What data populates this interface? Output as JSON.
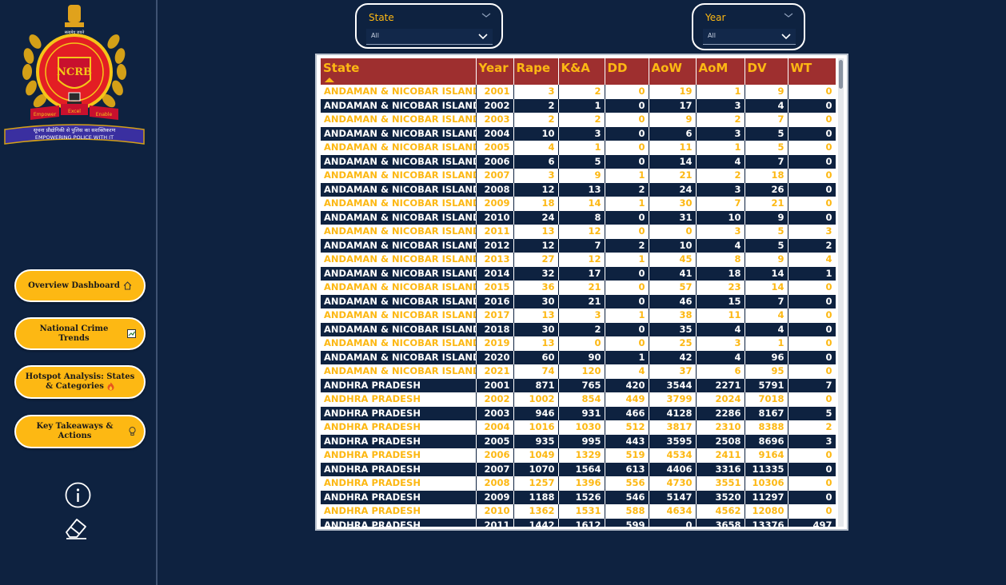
{
  "sidebar": {
    "logo": {
      "top_text": "सत्यमेव जयते",
      "seal_text": "NCRB",
      "motto_left": "Empower",
      "motto_mid": "Excel",
      "motto_right": "Enable",
      "ribbon_hindi": "सूचना प्रौद्योगिकी से पुलिस का सशक्तिकरण",
      "ribbon_english": "EMPOWERING POLICE WITH IT"
    },
    "nav": [
      {
        "label": "Overview Dashboard",
        "icon": "home-icon"
      },
      {
        "label": "National Crime Trends",
        "icon": "chart-icon"
      },
      {
        "label": "Hotspot Analysis: States & Categories",
        "icon": "fire-icon"
      },
      {
        "label": "Key Takeaways & Actions",
        "icon": "lightbulb-icon"
      }
    ],
    "info_icon": "info-icon",
    "eraser_icon": "eraser-icon"
  },
  "filters": {
    "state": {
      "label": "State",
      "value": "All"
    },
    "year": {
      "label": "Year",
      "value": "All"
    }
  },
  "colors": {
    "background": "#0e2240",
    "accent": "#fdb813",
    "header": "#9e2f2f",
    "white": "#ffffff"
  },
  "table": {
    "columns": [
      "State",
      "Year",
      "Rape",
      "K&A",
      "DD",
      "AoW",
      "AoM",
      "DV",
      "WT"
    ],
    "rows": [
      [
        "ANDAMAN & NICOBAR ISLANDS",
        "2001",
        "3",
        "2",
        "0",
        "19",
        "1",
        "9",
        "0"
      ],
      [
        "ANDAMAN & NICOBAR ISLANDS",
        "2002",
        "2",
        "1",
        "0",
        "17",
        "3",
        "4",
        "0"
      ],
      [
        "ANDAMAN & NICOBAR ISLANDS",
        "2003",
        "2",
        "2",
        "0",
        "9",
        "2",
        "7",
        "0"
      ],
      [
        "ANDAMAN & NICOBAR ISLANDS",
        "2004",
        "10",
        "3",
        "0",
        "6",
        "3",
        "5",
        "0"
      ],
      [
        "ANDAMAN & NICOBAR ISLANDS",
        "2005",
        "4",
        "1",
        "0",
        "11",
        "1",
        "5",
        "0"
      ],
      [
        "ANDAMAN & NICOBAR ISLANDS",
        "2006",
        "6",
        "5",
        "0",
        "14",
        "4",
        "7",
        "0"
      ],
      [
        "ANDAMAN & NICOBAR ISLANDS",
        "2007",
        "3",
        "9",
        "1",
        "21",
        "2",
        "18",
        "0"
      ],
      [
        "ANDAMAN & NICOBAR ISLANDS",
        "2008",
        "12",
        "13",
        "2",
        "24",
        "3",
        "26",
        "0"
      ],
      [
        "ANDAMAN & NICOBAR ISLANDS",
        "2009",
        "18",
        "14",
        "1",
        "30",
        "7",
        "21",
        "0"
      ],
      [
        "ANDAMAN & NICOBAR ISLANDS",
        "2010",
        "24",
        "8",
        "0",
        "31",
        "10",
        "9",
        "0"
      ],
      [
        "ANDAMAN & NICOBAR ISLANDS",
        "2011",
        "13",
        "12",
        "0",
        "0",
        "3",
        "5",
        "3"
      ],
      [
        "ANDAMAN & NICOBAR ISLANDS",
        "2012",
        "12",
        "7",
        "2",
        "10",
        "4",
        "5",
        "2"
      ],
      [
        "ANDAMAN & NICOBAR ISLANDS",
        "2013",
        "27",
        "12",
        "1",
        "45",
        "8",
        "9",
        "4"
      ],
      [
        "ANDAMAN & NICOBAR ISLANDS",
        "2014",
        "32",
        "17",
        "0",
        "41",
        "18",
        "14",
        "1"
      ],
      [
        "ANDAMAN & NICOBAR ISLANDS",
        "2015",
        "36",
        "21",
        "0",
        "57",
        "23",
        "14",
        "0"
      ],
      [
        "ANDAMAN & NICOBAR ISLANDS",
        "2016",
        "30",
        "21",
        "0",
        "46",
        "15",
        "7",
        "0"
      ],
      [
        "ANDAMAN & NICOBAR ISLANDS",
        "2017",
        "13",
        "3",
        "1",
        "38",
        "11",
        "4",
        "0"
      ],
      [
        "ANDAMAN & NICOBAR ISLANDS",
        "2018",
        "30",
        "2",
        "0",
        "35",
        "4",
        "4",
        "0"
      ],
      [
        "ANDAMAN & NICOBAR ISLANDS",
        "2019",
        "13",
        "0",
        "0",
        "25",
        "3",
        "1",
        "0"
      ],
      [
        "ANDAMAN & NICOBAR ISLANDS",
        "2020",
        "60",
        "90",
        "1",
        "42",
        "4",
        "96",
        "0"
      ],
      [
        "ANDAMAN & NICOBAR ISLANDS",
        "2021",
        "74",
        "120",
        "4",
        "37",
        "6",
        "95",
        "0"
      ],
      [
        "ANDHRA PRADESH",
        "2001",
        "871",
        "765",
        "420",
        "3544",
        "2271",
        "5791",
        "7"
      ],
      [
        "ANDHRA PRADESH",
        "2002",
        "1002",
        "854",
        "449",
        "3799",
        "2024",
        "7018",
        "0"
      ],
      [
        "ANDHRA PRADESH",
        "2003",
        "946",
        "931",
        "466",
        "4128",
        "2286",
        "8167",
        "5"
      ],
      [
        "ANDHRA PRADESH",
        "2004",
        "1016",
        "1030",
        "512",
        "3817",
        "2310",
        "8388",
        "2"
      ],
      [
        "ANDHRA PRADESH",
        "2005",
        "935",
        "995",
        "443",
        "3595",
        "2508",
        "8696",
        "3"
      ],
      [
        "ANDHRA PRADESH",
        "2006",
        "1049",
        "1329",
        "519",
        "4534",
        "2411",
        "9164",
        "0"
      ],
      [
        "ANDHRA PRADESH",
        "2007",
        "1070",
        "1564",
        "613",
        "4406",
        "3316",
        "11335",
        "0"
      ],
      [
        "ANDHRA PRADESH",
        "2008",
        "1257",
        "1396",
        "556",
        "4730",
        "3551",
        "10306",
        "0"
      ],
      [
        "ANDHRA PRADESH",
        "2009",
        "1188",
        "1526",
        "546",
        "5147",
        "3520",
        "11297",
        "0"
      ],
      [
        "ANDHRA PRADESH",
        "2010",
        "1362",
        "1531",
        "588",
        "4634",
        "4562",
        "12080",
        "0"
      ],
      [
        "ANDHRA PRADESH",
        "2011",
        "1442",
        "1612",
        "599",
        "0",
        "3658",
        "13376",
        "497"
      ]
    ]
  }
}
